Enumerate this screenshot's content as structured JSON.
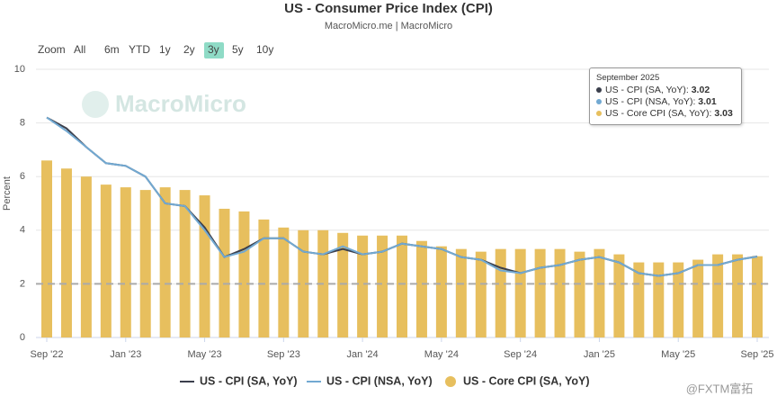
{
  "chart_data": {
    "type": "bar_line",
    "title": "US - Consumer Price Index (CPI)",
    "subtitle": "MacroMicro.me | MacroMicro",
    "watermark": "MacroMicro",
    "corner_mark": "@FXTM富拓",
    "range_selector": {
      "label": "Zoom",
      "options": [
        "All",
        "6m",
        "YTD",
        "1y",
        "2y",
        "3y",
        "5y",
        "10y"
      ],
      "selected": 5
    },
    "y_label": "Percent",
    "ylim": [
      0,
      10
    ],
    "yticks": [
      0,
      2,
      4,
      6,
      8,
      10
    ],
    "grid": true,
    "hline": 2,
    "categories": [
      "Sep '22",
      null,
      null,
      null,
      "Jan '23",
      null,
      null,
      null,
      "May '23",
      null,
      null,
      null,
      "Sep '23",
      null,
      null,
      null,
      "Jan '24",
      null,
      null,
      null,
      "May '24",
      null,
      null,
      null,
      "Sep '24",
      null,
      null,
      null,
      "Jan '25",
      null,
      null,
      null,
      "May '25",
      null,
      null,
      null,
      "Sep '25"
    ],
    "series": [
      {
        "name": "US - CPI (SA, YoY)",
        "kind": "line",
        "color": "#3b3f4c",
        "values": [
          8.2,
          7.8,
          7.1,
          6.5,
          6.4,
          6.0,
          5.0,
          4.9,
          4.1,
          3.0,
          3.3,
          3.7,
          3.7,
          3.2,
          3.1,
          3.3,
          3.1,
          3.2,
          3.5,
          3.4,
          3.3,
          3.0,
          2.9,
          2.6,
          2.4,
          2.6,
          2.7,
          2.9,
          3.0,
          2.8,
          2.4,
          2.3,
          2.4,
          2.7,
          2.7,
          2.9,
          3.02
        ]
      },
      {
        "name": "US - CPI (NSA, YoY)",
        "kind": "line",
        "color": "#72a9d2",
        "values": [
          8.2,
          7.7,
          7.1,
          6.5,
          6.4,
          6.0,
          5.0,
          4.9,
          4.0,
          3.0,
          3.2,
          3.7,
          3.7,
          3.2,
          3.1,
          3.4,
          3.1,
          3.2,
          3.5,
          3.4,
          3.3,
          3.0,
          2.9,
          2.5,
          2.4,
          2.6,
          2.7,
          2.9,
          3.0,
          2.8,
          2.4,
          2.3,
          2.4,
          2.7,
          2.7,
          2.9,
          3.01
        ]
      },
      {
        "name": "US - Core CPI (SA, YoY)",
        "kind": "bar",
        "color": "#e7bf5e",
        "values": [
          6.6,
          6.3,
          6.0,
          5.7,
          5.6,
          5.5,
          5.6,
          5.5,
          5.3,
          4.8,
          4.7,
          4.4,
          4.1,
          4.0,
          4.0,
          3.9,
          3.8,
          3.8,
          3.8,
          3.6,
          3.4,
          3.3,
          3.2,
          3.3,
          3.3,
          3.3,
          3.3,
          3.2,
          3.3,
          3.1,
          2.8,
          2.8,
          2.8,
          2.9,
          3.1,
          3.1,
          3.03
        ]
      }
    ],
    "tooltip": {
      "title": "September 2025"
    }
  }
}
